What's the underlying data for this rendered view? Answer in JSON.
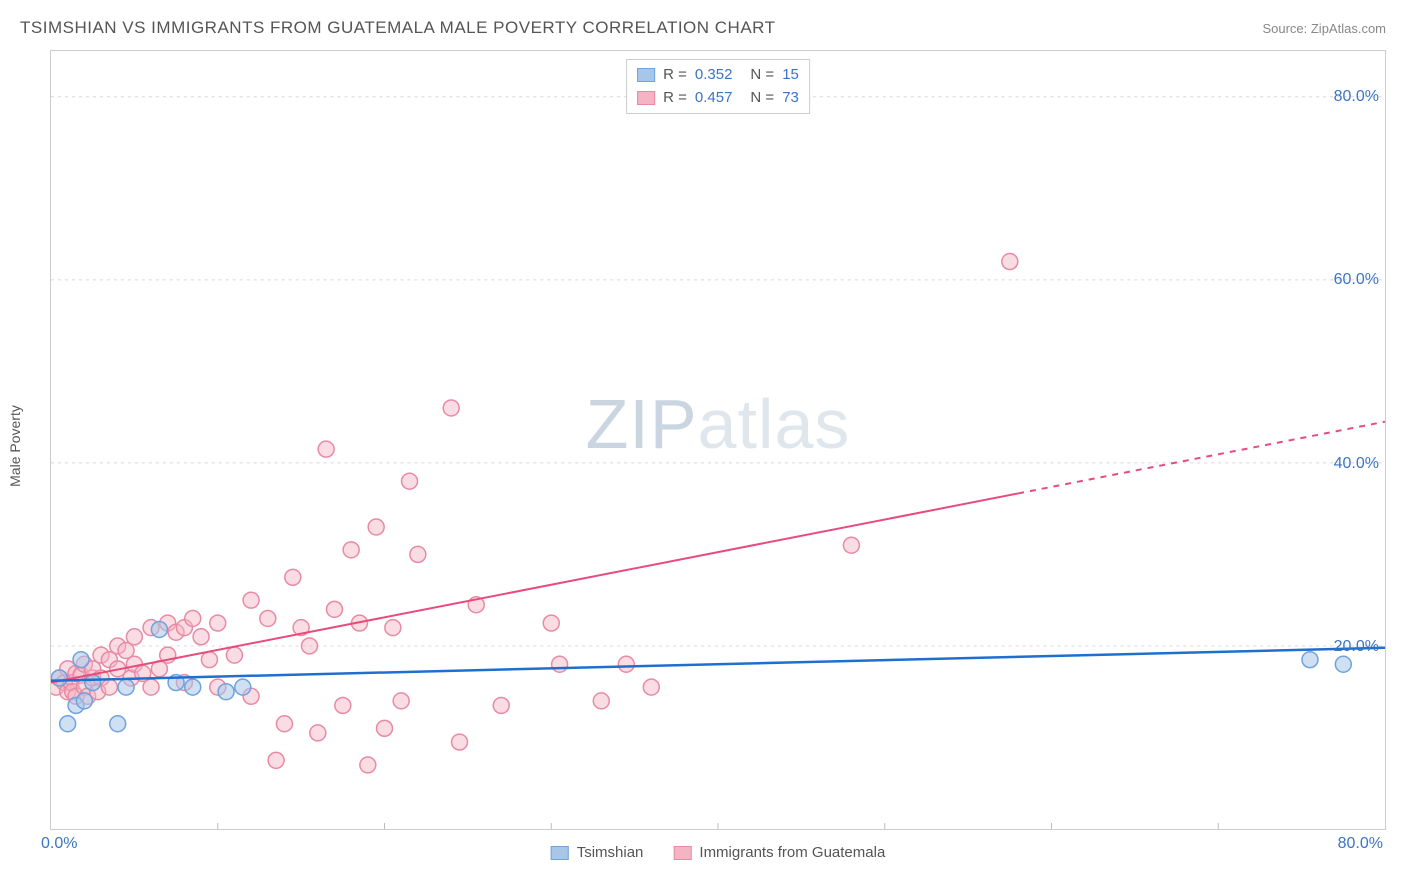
{
  "header": {
    "title": "TSIMSHIAN VS IMMIGRANTS FROM GUATEMALA MALE POVERTY CORRELATION CHART",
    "source": "Source: ZipAtlas.com"
  },
  "ylabel": "Male Poverty",
  "watermark": {
    "part1": "ZIP",
    "part2": "atlas"
  },
  "chart": {
    "type": "scatter",
    "xlim": [
      0,
      80
    ],
    "ylim": [
      0,
      85
    ],
    "y_ticks": [
      {
        "value": 20,
        "label": "20.0%"
      },
      {
        "value": 40,
        "label": "40.0%"
      },
      {
        "value": 60,
        "label": "60.0%"
      },
      {
        "value": 80,
        "label": "80.0%"
      }
    ],
    "x_min_label": "0.0%",
    "x_max_label": "80.0%",
    "x_minor_ticks": [
      10,
      20,
      30,
      40,
      50,
      60,
      70
    ],
    "grid_color": "#d8d8d8",
    "background": "#ffffff",
    "marker_radius": 8,
    "marker_stroke_width": 1.5,
    "series": [
      {
        "id": "tsimshian",
        "label": "Tsimshian",
        "R": "0.352",
        "N": "15",
        "fill": "#a7c7ea",
        "fill_opacity": 0.55,
        "stroke": "#6ea3dc",
        "trend": {
          "x1": 0,
          "y1": 16.2,
          "x2": 80,
          "y2": 19.8,
          "solid_until": 80,
          "color": "#1f6fd0",
          "width": 2.5
        },
        "points": [
          [
            0.5,
            16.5
          ],
          [
            1.0,
            11.5
          ],
          [
            1.5,
            13.5
          ],
          [
            1.8,
            18.5
          ],
          [
            2.0,
            14.0
          ],
          [
            2.5,
            16.0
          ],
          [
            4.0,
            11.5
          ],
          [
            4.5,
            15.5
          ],
          [
            6.5,
            21.8
          ],
          [
            7.5,
            16.0
          ],
          [
            8.5,
            15.5
          ],
          [
            10.5,
            15.0
          ],
          [
            11.5,
            15.5
          ],
          [
            75.5,
            18.5
          ],
          [
            77.5,
            18.0
          ]
        ]
      },
      {
        "id": "immigrants",
        "label": "Immigrants from Guatemala",
        "R": "0.457",
        "N": "73",
        "fill": "#f4b4c4",
        "fill_opacity": 0.45,
        "stroke": "#e98aa4",
        "trend": {
          "x1": 0,
          "y1": 16.0,
          "x2": 80,
          "y2": 44.5,
          "solid_until": 58,
          "color": "#e84b7e",
          "width": 2
        },
        "points": [
          [
            0.3,
            15.5
          ],
          [
            0.5,
            16.5
          ],
          [
            0.8,
            16.0
          ],
          [
            1.0,
            15.0
          ],
          [
            1.0,
            17.5
          ],
          [
            1.2,
            16.0
          ],
          [
            1.3,
            15.0
          ],
          [
            1.5,
            14.5
          ],
          [
            1.5,
            17.0
          ],
          [
            1.8,
            16.8
          ],
          [
            2.0,
            15.5
          ],
          [
            2.0,
            18.0
          ],
          [
            2.2,
            14.5
          ],
          [
            2.5,
            16.5
          ],
          [
            2.5,
            17.5
          ],
          [
            2.8,
            15.0
          ],
          [
            3.0,
            19.0
          ],
          [
            3.0,
            16.5
          ],
          [
            3.5,
            18.5
          ],
          [
            3.5,
            15.5
          ],
          [
            4.0,
            17.5
          ],
          [
            4.0,
            20.0
          ],
          [
            4.5,
            19.5
          ],
          [
            4.8,
            16.5
          ],
          [
            5.0,
            21.0
          ],
          [
            5.0,
            18.0
          ],
          [
            5.5,
            17.0
          ],
          [
            6.0,
            15.5
          ],
          [
            6.0,
            22.0
          ],
          [
            6.5,
            17.5
          ],
          [
            7.0,
            22.5
          ],
          [
            7.0,
            19.0
          ],
          [
            7.5,
            21.5
          ],
          [
            8.0,
            22.0
          ],
          [
            8.0,
            16.0
          ],
          [
            8.5,
            23.0
          ],
          [
            9.0,
            21.0
          ],
          [
            9.5,
            18.5
          ],
          [
            10.0,
            22.5
          ],
          [
            10.0,
            15.5
          ],
          [
            11.0,
            19.0
          ],
          [
            12.0,
            25.0
          ],
          [
            12.0,
            14.5
          ],
          [
            13.0,
            23.0
          ],
          [
            13.5,
            7.5
          ],
          [
            14.0,
            11.5
          ],
          [
            14.5,
            27.5
          ],
          [
            15.0,
            22.0
          ],
          [
            15.5,
            20.0
          ],
          [
            16.0,
            10.5
          ],
          [
            16.5,
            41.5
          ],
          [
            17.0,
            24.0
          ],
          [
            17.5,
            13.5
          ],
          [
            18.0,
            30.5
          ],
          [
            18.5,
            22.5
          ],
          [
            19.0,
            7.0
          ],
          [
            19.5,
            33.0
          ],
          [
            20.0,
            11.0
          ],
          [
            20.5,
            22.0
          ],
          [
            21.0,
            14.0
          ],
          [
            21.5,
            38.0
          ],
          [
            22.0,
            30.0
          ],
          [
            24.0,
            46.0
          ],
          [
            24.5,
            9.5
          ],
          [
            25.5,
            24.5
          ],
          [
            27.0,
            13.5
          ],
          [
            30.0,
            22.5
          ],
          [
            30.5,
            18.0
          ],
          [
            33.0,
            14.0
          ],
          [
            34.5,
            18.0
          ],
          [
            36.0,
            15.5
          ],
          [
            48.0,
            31.0
          ],
          [
            57.5,
            62.0
          ]
        ]
      }
    ]
  },
  "legend_bottom": [
    {
      "label": "Tsimshian",
      "series": 0
    },
    {
      "label": "Immigrants from Guatemala",
      "series": 1
    }
  ]
}
